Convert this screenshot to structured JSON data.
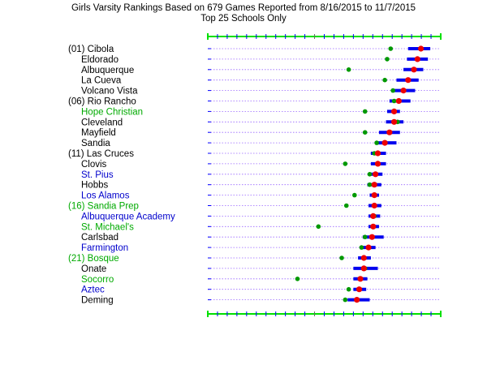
{
  "chart_data": {
    "type": "scatter",
    "title_lines": [
      "Girls Varsity Rankings Based on 679 Games Reported from 8/16/2015 to 11/7/2015",
      "Top 25 Schools Only"
    ],
    "colors": {
      "frame": "#00e000",
      "tick": "#0000ff",
      "gridline": "#9966ff",
      "bar": "#0000ee",
      "rating_dot": "#ee0000",
      "record_dot": "#009900",
      "label_black": "#000000",
      "label_green": "#00aa00",
      "label_blue": "#0000cc"
    },
    "rows": [
      {
        "label": "(01) Cibola",
        "label_color": "black",
        "low": 0.86,
        "mid": 0.915,
        "high": 0.955,
        "green": 0.785
      },
      {
        "label": "Eldorado",
        "label_color": "black",
        "low": 0.855,
        "mid": 0.9,
        "high": 0.945,
        "green": 0.77
      },
      {
        "label": "Albuquerque",
        "label_color": "black",
        "low": 0.84,
        "mid": 0.885,
        "high": 0.925,
        "green": 0.605
      },
      {
        "label": "La Cueva",
        "label_color": "black",
        "low": 0.81,
        "mid": 0.86,
        "high": 0.905,
        "green": 0.76
      },
      {
        "label": "Volcano Vista",
        "label_color": "black",
        "low": 0.79,
        "mid": 0.84,
        "high": 0.89,
        "green": 0.795
      },
      {
        "label": "(06) Rio Rancho",
        "label_color": "black",
        "low": 0.78,
        "mid": 0.82,
        "high": 0.87,
        "green": 0.8
      },
      {
        "label": "Hope Christian",
        "label_color": "green",
        "low": 0.77,
        "mid": 0.8,
        "high": 0.825,
        "green": 0.675
      },
      {
        "label": "Cleveland",
        "label_color": "black",
        "low": 0.765,
        "mid": 0.8,
        "high": 0.84,
        "green": 0.815
      },
      {
        "label": "Mayfield",
        "label_color": "black",
        "low": 0.735,
        "mid": 0.78,
        "high": 0.825,
        "green": 0.675
      },
      {
        "label": "Sandia",
        "label_color": "black",
        "low": 0.72,
        "mid": 0.76,
        "high": 0.81,
        "green": 0.725
      },
      {
        "label": "(11) Las Cruces",
        "label_color": "black",
        "low": 0.7,
        "mid": 0.73,
        "high": 0.765,
        "green": 0.715
      },
      {
        "label": "Clovis",
        "label_color": "black",
        "low": 0.7,
        "mid": 0.73,
        "high": 0.765,
        "green": 0.59
      },
      {
        "label": "St. Pius",
        "label_color": "blue",
        "low": 0.695,
        "mid": 0.72,
        "high": 0.75,
        "green": 0.695
      },
      {
        "label": "Hobbs",
        "label_color": "black",
        "low": 0.685,
        "mid": 0.715,
        "high": 0.745,
        "green": 0.695
      },
      {
        "label": "Los Alamos",
        "label_color": "blue",
        "low": 0.695,
        "mid": 0.715,
        "high": 0.735,
        "green": 0.63
      },
      {
        "label": "(16) Sandia Prep",
        "label_color": "green",
        "low": 0.69,
        "mid": 0.715,
        "high": 0.745,
        "green": 0.595
      },
      {
        "label": "Albuquerque Academy",
        "label_color": "blue",
        "low": 0.69,
        "mid": 0.71,
        "high": 0.74,
        "green": 0.715
      },
      {
        "label": "St. Michael's",
        "label_color": "green",
        "low": 0.69,
        "mid": 0.71,
        "high": 0.735,
        "green": 0.475
      },
      {
        "label": "Carlsbad",
        "label_color": "black",
        "low": 0.665,
        "mid": 0.705,
        "high": 0.755,
        "green": 0.675
      },
      {
        "label": "Farmington",
        "label_color": "blue",
        "low": 0.665,
        "mid": 0.69,
        "high": 0.72,
        "green": 0.66
      },
      {
        "label": "(21) Bosque",
        "label_color": "green",
        "low": 0.645,
        "mid": 0.67,
        "high": 0.7,
        "green": 0.575
      },
      {
        "label": "Onate",
        "label_color": "black",
        "low": 0.625,
        "mid": 0.67,
        "high": 0.73,
        "green": 0.675
      },
      {
        "label": "Socorro",
        "label_color": "green",
        "low": 0.625,
        "mid": 0.655,
        "high": 0.685,
        "green": 0.385
      },
      {
        "label": "Aztec",
        "label_color": "blue",
        "low": 0.625,
        "mid": 0.65,
        "high": 0.68,
        "green": 0.605
      },
      {
        "label": "Deming",
        "label_color": "black",
        "low": 0.6,
        "mid": 0.64,
        "high": 0.695,
        "green": 0.59
      }
    ],
    "xlim": [
      0,
      1
    ],
    "grid": true,
    "legend": "none"
  }
}
